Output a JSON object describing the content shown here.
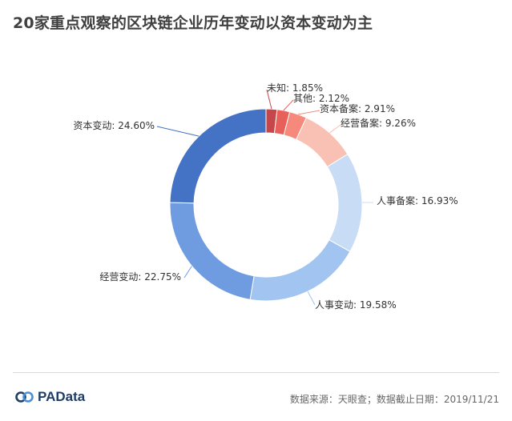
{
  "title": "20家重点观察的区块链企业历年变动以资本变动为主",
  "brand": "PAData",
  "source": "数据来源：天眼查；数据截止日期：2019/11/21",
  "chart_data": {
    "type": "pie",
    "variant": "donut",
    "legend": "none",
    "slices": [
      {
        "label": "未知: 1.85%",
        "value": 1.85,
        "color": "#c6464a"
      },
      {
        "label": "其他: 2.12%",
        "value": 2.12,
        "color": "#e8605a"
      },
      {
        "label": "资本备案: 2.91%",
        "value": 2.91,
        "color": "#f58a7c"
      },
      {
        "label": "经营备案: 9.26%",
        "value": 9.26,
        "color": "#f8c1b4"
      },
      {
        "label": "人事备案: 16.93%",
        "value": 16.93,
        "color": "#c9dcf6"
      },
      {
        "label": "人事变动: 19.58%",
        "value": 19.58,
        "color": "#a2c4f0"
      },
      {
        "label": "经营变动: 22.75%",
        "value": 22.75,
        "color": "#6f9be0"
      },
      {
        "label": "资本变动: 24.60%",
        "value": 24.6,
        "color": "#4472c4"
      }
    ]
  }
}
